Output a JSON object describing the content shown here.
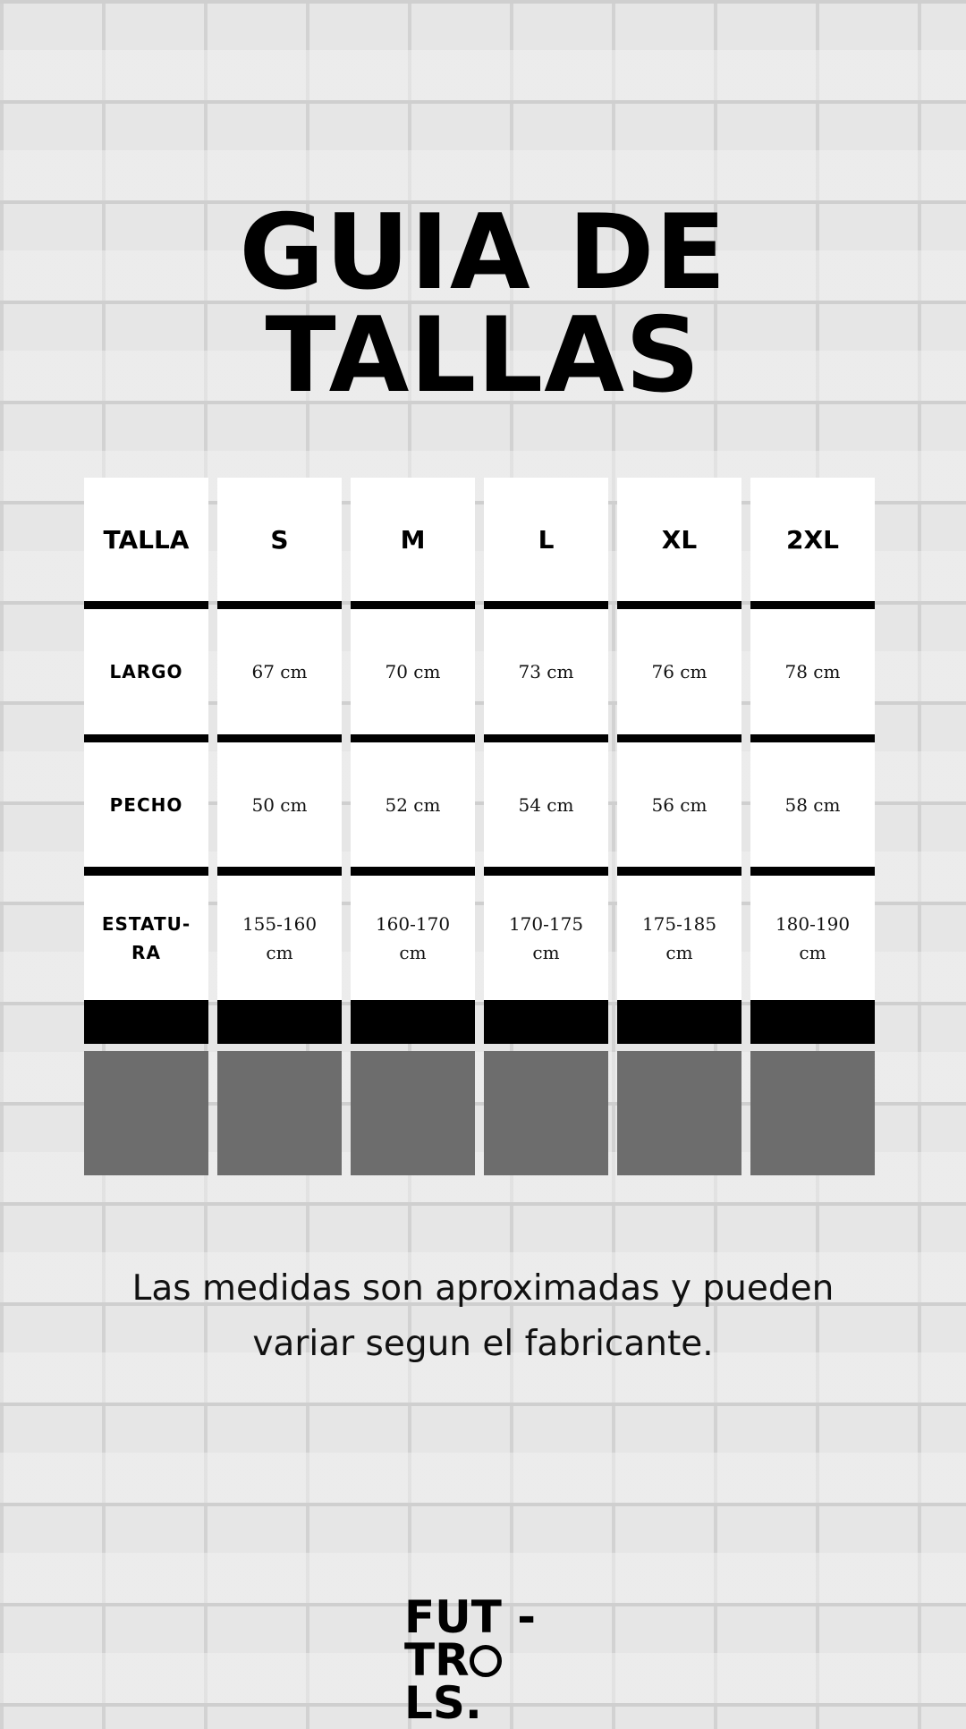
{
  "title": {
    "line1": "GUIA DE",
    "line2": "TALLAS"
  },
  "table": {
    "columns": [
      {
        "header": "TALLA",
        "largo": "LARGO",
        "pecho": "PECHO",
        "estatura": "ESTATU-\nRA"
      },
      {
        "header": "S",
        "largo": "67 cm",
        "pecho": "50 cm",
        "estatura": "155-160\ncm"
      },
      {
        "header": "M",
        "largo": "70 cm",
        "pecho": "52 cm",
        "estatura": "160-170\ncm"
      },
      {
        "header": "L",
        "largo": "73 cm",
        "pecho": "54 cm",
        "estatura": "170-175\ncm"
      },
      {
        "header": "XL",
        "largo": "76 cm",
        "pecho": "56 cm",
        "estatura": "175-185\ncm"
      },
      {
        "header": "2XL",
        "largo": "78 cm",
        "pecho": "58 cm",
        "estatura": "180-190\ncm"
      }
    ]
  },
  "note": "Las medidas son aproximadas y pueden variar segun el fabricante.",
  "logo": {
    "line1": "FUT -",
    "line2a": "TR",
    "line2b": "LS.",
    "icon": "soccer-ball-icon"
  },
  "colors": {
    "bar": "#000000",
    "block": "#6d6d6d",
    "cell": "#ffffff"
  }
}
